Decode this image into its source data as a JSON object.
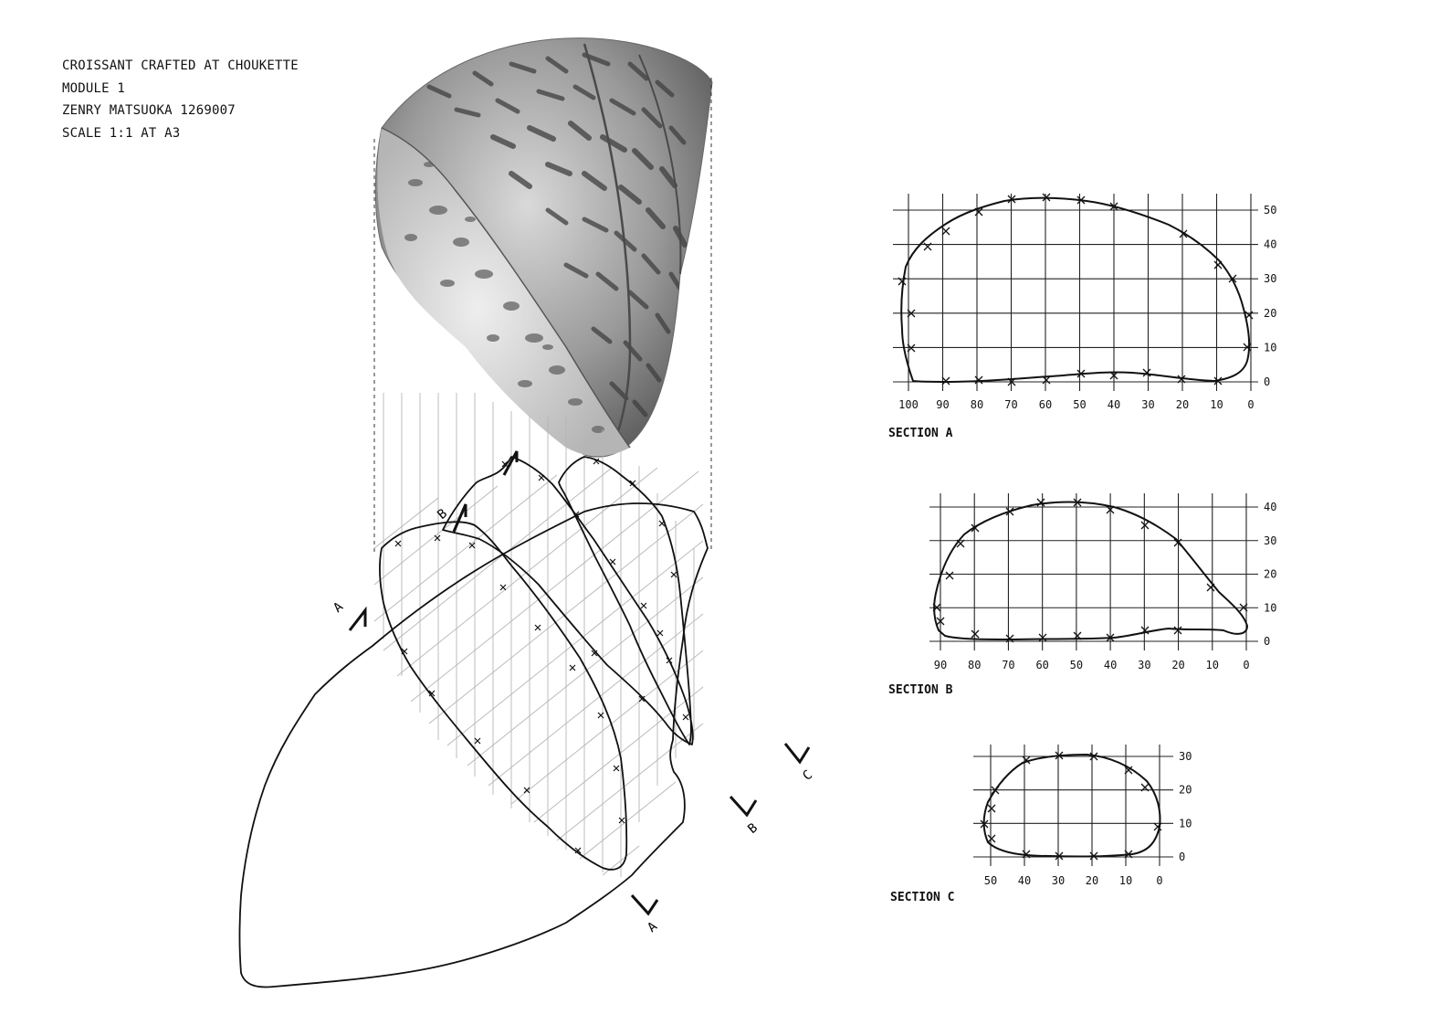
{
  "title_block": {
    "line1": "CROISSANT CRAFTED AT CHOUKETTE",
    "line2": "MODULE 1",
    "line3": "ZENRY MATSUOKA 1269007",
    "line4": "SCALE 1:1 AT A3"
  },
  "plan": {
    "cut_markers": [
      {
        "letter": "A"
      },
      {
        "letter": "B"
      },
      {
        "letter": "C"
      },
      {
        "letter": "A"
      },
      {
        "letter": "B"
      },
      {
        "letter": "C"
      }
    ]
  },
  "sections": [
    {
      "caption": "SECTION A",
      "x_ticks": [
        "100",
        "90",
        "80",
        "70",
        "60",
        "50",
        "40",
        "30",
        "20",
        "10",
        "0"
      ],
      "y_ticks": [
        "0",
        "10",
        "20",
        "30",
        "40",
        "50"
      ]
    },
    {
      "caption": "SECTION B",
      "x_ticks": [
        "90",
        "80",
        "70",
        "60",
        "50",
        "40",
        "30",
        "20",
        "10",
        "0"
      ],
      "y_ticks": [
        "0",
        "10",
        "20",
        "30",
        "40"
      ]
    },
    {
      "caption": "SECTION C",
      "x_ticks": [
        "50",
        "40",
        "30",
        "20",
        "10",
        "0"
      ],
      "y_ticks": [
        "0",
        "10",
        "20",
        "30"
      ]
    }
  ],
  "colors": {
    "ink": "#111111",
    "grid": "#333333",
    "pencil": "#8a8a8a",
    "guide": "#bbbbbb"
  }
}
